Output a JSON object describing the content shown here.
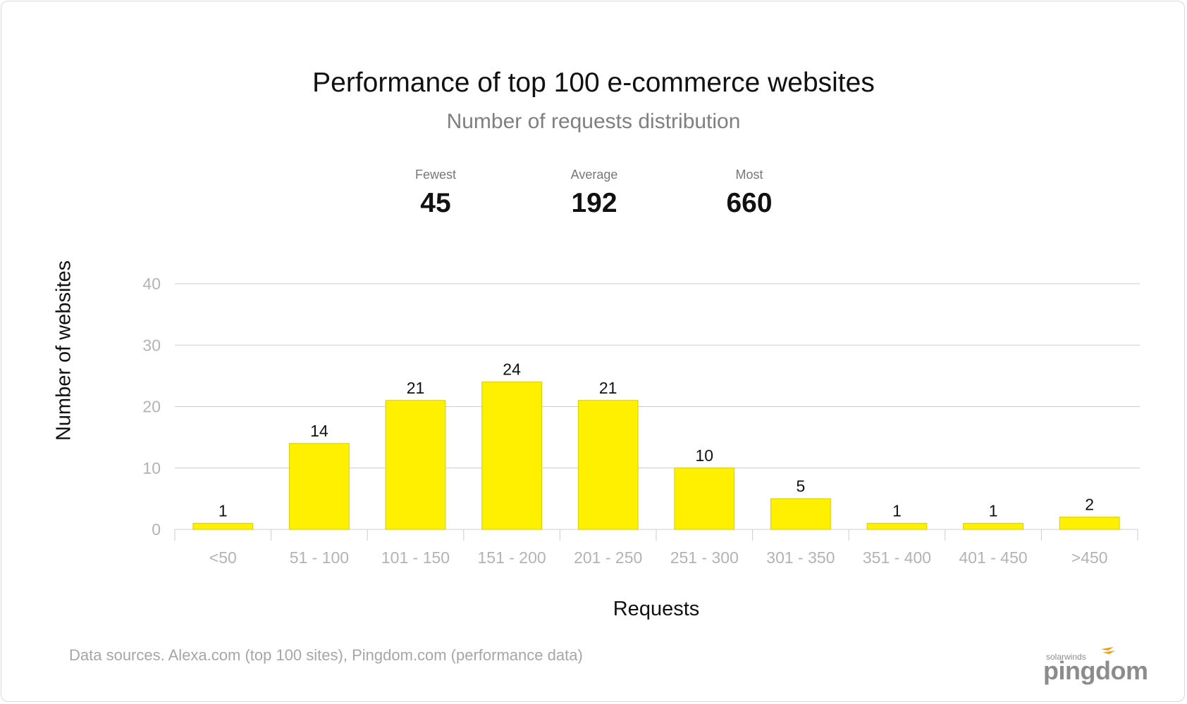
{
  "header": {
    "title": "Performance of top 100 e-commerce websites",
    "subtitle": "Number of requests distribution"
  },
  "stats": [
    {
      "label": "Fewest",
      "value": "45"
    },
    {
      "label": "Average",
      "value": "192"
    },
    {
      "label": "Most",
      "value": "660"
    }
  ],
  "footer": {
    "source": "Data sources. Alexa.com (top 100 sites), Pingdom.com (performance data)",
    "logo_small": "solarwinds",
    "logo_main": "pingdom"
  },
  "colors": {
    "bar": "#fff000",
    "bar_stroke": "#d8cc00",
    "grid": "#cccccc",
    "accent": "#f39c12"
  },
  "chart_data": {
    "type": "bar",
    "xlabel": "Requests",
    "ylabel": "Number of websites",
    "ylim": [
      0,
      40
    ],
    "yticks": [
      0,
      10,
      20,
      30,
      40
    ],
    "grid": true,
    "categories": [
      "<50",
      "51 - 100",
      "101 - 150",
      "151 - 200",
      "201 - 250",
      "251 - 300",
      "301 - 350",
      "351 - 400",
      "401 - 450",
      ">450"
    ],
    "values": [
      1,
      14,
      21,
      24,
      21,
      10,
      5,
      1,
      1,
      2
    ],
    "data_labels": true
  }
}
